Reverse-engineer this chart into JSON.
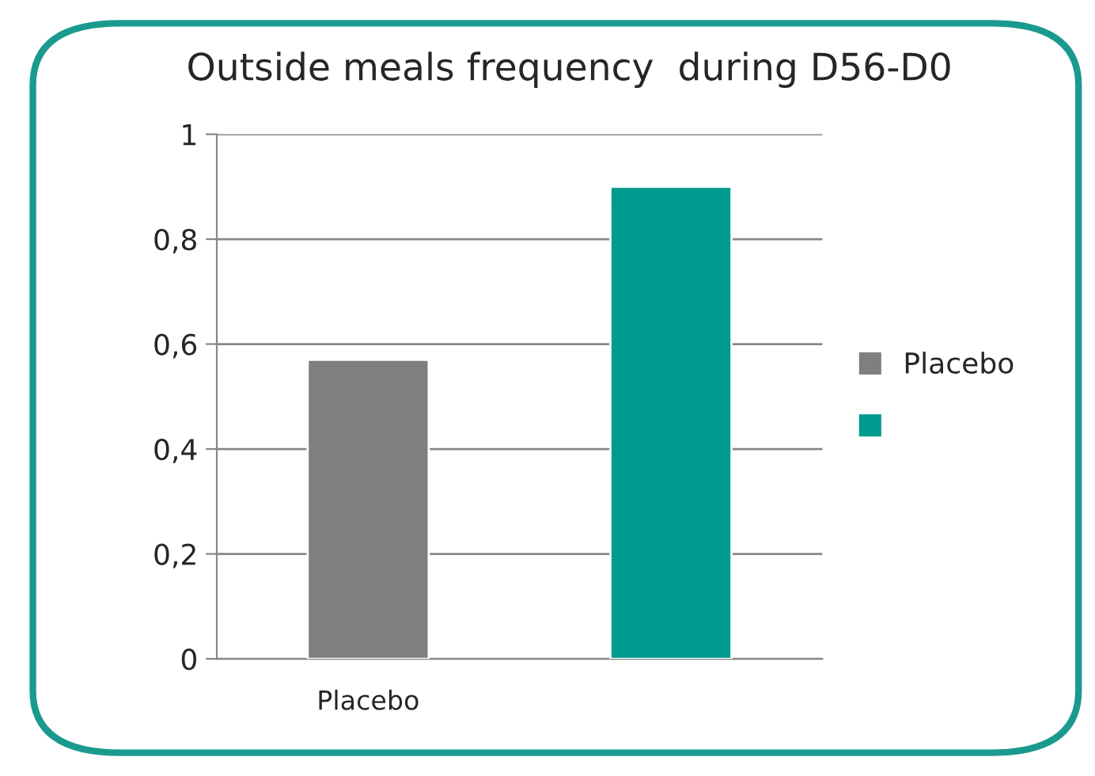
{
  "chart_data": {
    "type": "bar",
    "title": "Outside meals frequency  during D56-D0",
    "categories": [
      "Placebo",
      null
    ],
    "series": [
      {
        "name": "Placebo",
        "color": "#7f7f7f",
        "values": [
          0.57,
          null
        ]
      },
      {
        "color": "#009a8e",
        "values": [
          null,
          0.9
        ]
      }
    ],
    "ylim": [
      0,
      1
    ],
    "yticks": [
      0,
      {
        "value": 0.2,
        "label": "0,2"
      },
      {
        "value": 0.4,
        "label": "0,4"
      },
      {
        "value": 0.6,
        "label": "0,6"
      },
      {
        "value": 0.8,
        "label": "0,8"
      },
      1
    ],
    "grid": "y",
    "legend": "right"
  }
}
